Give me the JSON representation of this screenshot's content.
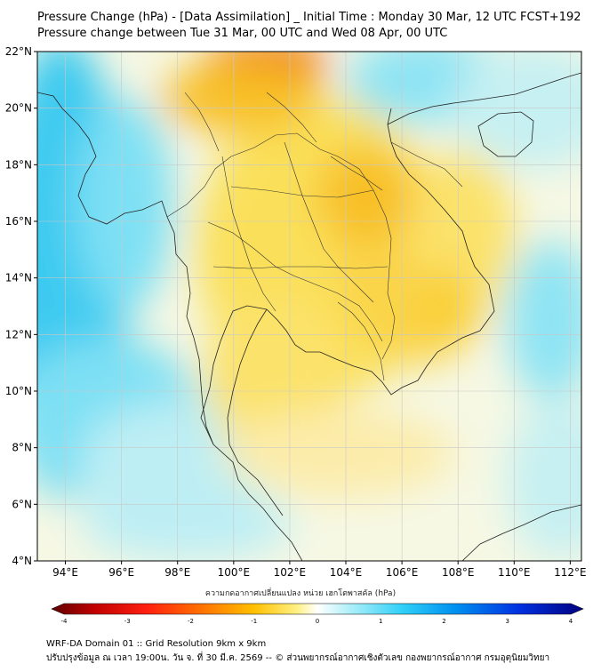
{
  "header": {
    "title_line1": "Pressure Change (hPa) - [Data Assimilation] _ Initial Time : Monday 30 Mar, 12 UTC FCST+192",
    "title_line2": "Pressure change between Tue 31 Mar, 00 UTC and Wed 08 Apr, 00 UTC"
  },
  "map": {
    "lat_labels": [
      "22°N",
      "20°N",
      "18°N",
      "16°N",
      "14°N",
      "12°N",
      "10°N",
      "8°N",
      "6°N",
      "4°N"
    ],
    "lon_labels": [
      "94°E",
      "96°E",
      "98°E",
      "100°E",
      "102°E",
      "104°E",
      "106°E",
      "108°E",
      "110°E",
      "112°E"
    ],
    "lat_range": [
      4,
      22
    ],
    "lon_range": [
      93,
      112.4
    ],
    "colors": {
      "negative_strong": "#f07820",
      "negative_medium": "#fcc418",
      "negative_weak": "#fae460",
      "neutral": "#f8f8e0",
      "positive_weak": "#b8ecf4",
      "positive_medium": "#60dcf4",
      "positive_strong": "#30c8f0",
      "coastline": "#222222"
    }
  },
  "colorbar": {
    "title": "ความกดอากาศเปลี่ยนแปลง หน่วย เฮกโตพาสคัล (hPa)",
    "ticks": [
      "-4",
      "-3",
      "-2",
      "-1",
      "0",
      "1",
      "2",
      "3",
      "4"
    ],
    "range": [
      -4,
      4
    ],
    "colors": [
      "#600000",
      "#d00000",
      "#ff3010",
      "#ff8c00",
      "#ffc800",
      "#fff080",
      "#ffffff",
      "#a0f0f8",
      "#30d0f8",
      "#0090f0",
      "#0030e0",
      "#000080"
    ]
  },
  "footer": {
    "line1": "WRF-DA Domain 01 :: Grid Resolution 9km x 9km",
    "line2": "ปรับปรุงข้อมูล ณ เวลา 19:00น. วัน จ. ที่ 30 มี.ค. 2569 -- © ส่วนพยากรณ์อากาศเชิงตัวเลข กองพยากรณ์อากาศ กรมอุตุนิยมวิทยา"
  }
}
